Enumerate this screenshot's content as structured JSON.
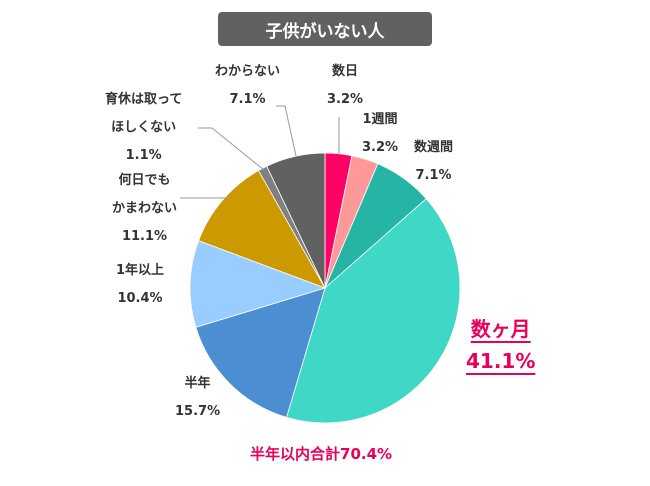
{
  "chart_data": {
    "type": "pie",
    "title": "子供がいない人",
    "start": "top, clockwise",
    "slices": [
      {
        "label": "数日",
        "value": 3.2,
        "display": "3.2%",
        "color": "#ff0066"
      },
      {
        "label": "1週間",
        "value": 3.2,
        "display": "3.2%",
        "color": "#ff9999"
      },
      {
        "label": "数週間",
        "value": 7.1,
        "display": "7.1%",
        "color": "#26b5a5"
      },
      {
        "label": "数ヶ月",
        "value": 41.1,
        "display": "41.1%",
        "color": "#3fd7c5"
      },
      {
        "label": "半年",
        "value": 15.7,
        "display": "15.7%",
        "color": "#4b8fd2"
      },
      {
        "label": "1年以上",
        "value": 10.4,
        "display": "10.4%",
        "color": "#99ccff"
      },
      {
        "label": [
          "何日でも",
          "かまわない"
        ],
        "value": 11.1,
        "display": "11.1%",
        "color": "#cc9900"
      },
      {
        "label": [
          "育休は取って",
          "ほしくない"
        ],
        "value": 1.1,
        "display": "1.1%",
        "color": "#808080"
      },
      {
        "label": "わからない",
        "value": 7.1,
        "display": "7.1%",
        "color": "#616161"
      }
    ],
    "annotation": "半年以内合計70.4%"
  }
}
